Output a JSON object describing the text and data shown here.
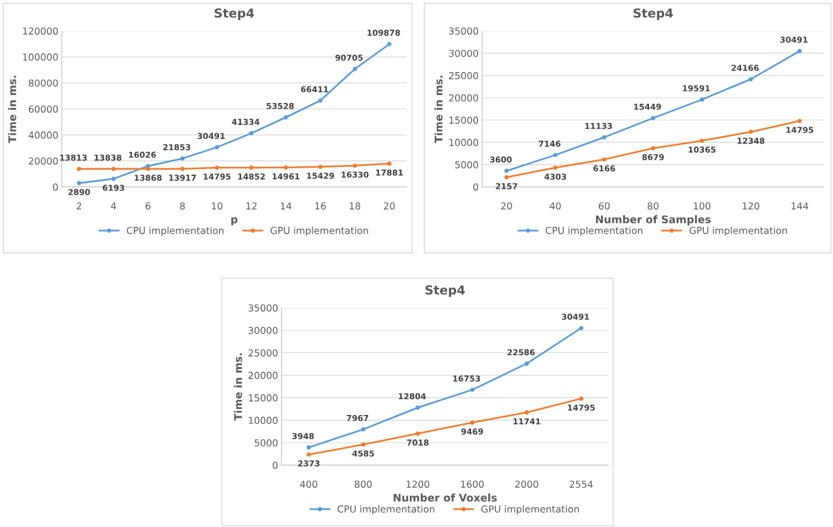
{
  "chart_data": [
    {
      "type": "line",
      "title": "Step4",
      "xlabel": "p",
      "ylabel": "Time in ms.",
      "categories": [
        "2",
        "4",
        "6",
        "8",
        "10",
        "12",
        "14",
        "16",
        "18",
        "20"
      ],
      "series": [
        {
          "name": "CPU implementation",
          "color": "#5b9bd5",
          "values": [
            2890,
            6193,
            16026,
            21853,
            30491,
            41334,
            53528,
            66411,
            90705,
            109878
          ]
        },
        {
          "name": "GPU implementation",
          "color": "#ed7d31",
          "values": [
            13813,
            13838,
            13868,
            13917,
            14795,
            14852,
            14961,
            15429,
            16330,
            17881
          ]
        }
      ],
      "ylim": [
        0,
        120000
      ],
      "yticks": [
        0,
        20000,
        40000,
        60000,
        80000,
        100000,
        120000
      ],
      "grid": "y",
      "legend": "bottom",
      "marker": "circle",
      "line_style": "solid",
      "data_labels": true
    },
    {
      "type": "line",
      "title": "Step4",
      "xlabel": "Number of Samples",
      "ylabel": "Time in ms.",
      "categories": [
        "20",
        "40",
        "60",
        "80",
        "100",
        "120",
        "144"
      ],
      "series": [
        {
          "name": "CPU implementation",
          "color": "#5b9bd5",
          "values": [
            3600,
            7146,
            11133,
            15449,
            19591,
            24166,
            30491
          ]
        },
        {
          "name": "GPU implementation",
          "color": "#ed7d31",
          "values": [
            2157,
            4303,
            6166,
            8679,
            10365,
            12348,
            14795
          ]
        }
      ],
      "ylim": [
        0,
        35000
      ],
      "yticks": [
        0,
        5000,
        10000,
        15000,
        20000,
        25000,
        30000,
        35000
      ],
      "grid": "y",
      "legend": "bottom",
      "marker": "circle",
      "line_style": "solid",
      "data_labels": true
    },
    {
      "type": "line",
      "title": "Step4",
      "xlabel": "Number of Voxels",
      "ylabel": "Time in ms.",
      "categories": [
        "400",
        "800",
        "1200",
        "1600",
        "2000",
        "2554"
      ],
      "series": [
        {
          "name": "CPU implementation",
          "color": "#5b9bd5",
          "values": [
            3948,
            7967,
            12804,
            16753,
            22586,
            30491
          ]
        },
        {
          "name": "GPU implementation",
          "color": "#ed7d31",
          "values": [
            2373,
            4585,
            7018,
            9469,
            11741,
            14795
          ]
        }
      ],
      "ylim": [
        0,
        35000
      ],
      "yticks": [
        0,
        5000,
        10000,
        15000,
        20000,
        25000,
        30000,
        35000
      ],
      "grid": "y",
      "legend": "bottom",
      "marker": "circle",
      "line_style": "solid",
      "data_labels": true
    }
  ]
}
